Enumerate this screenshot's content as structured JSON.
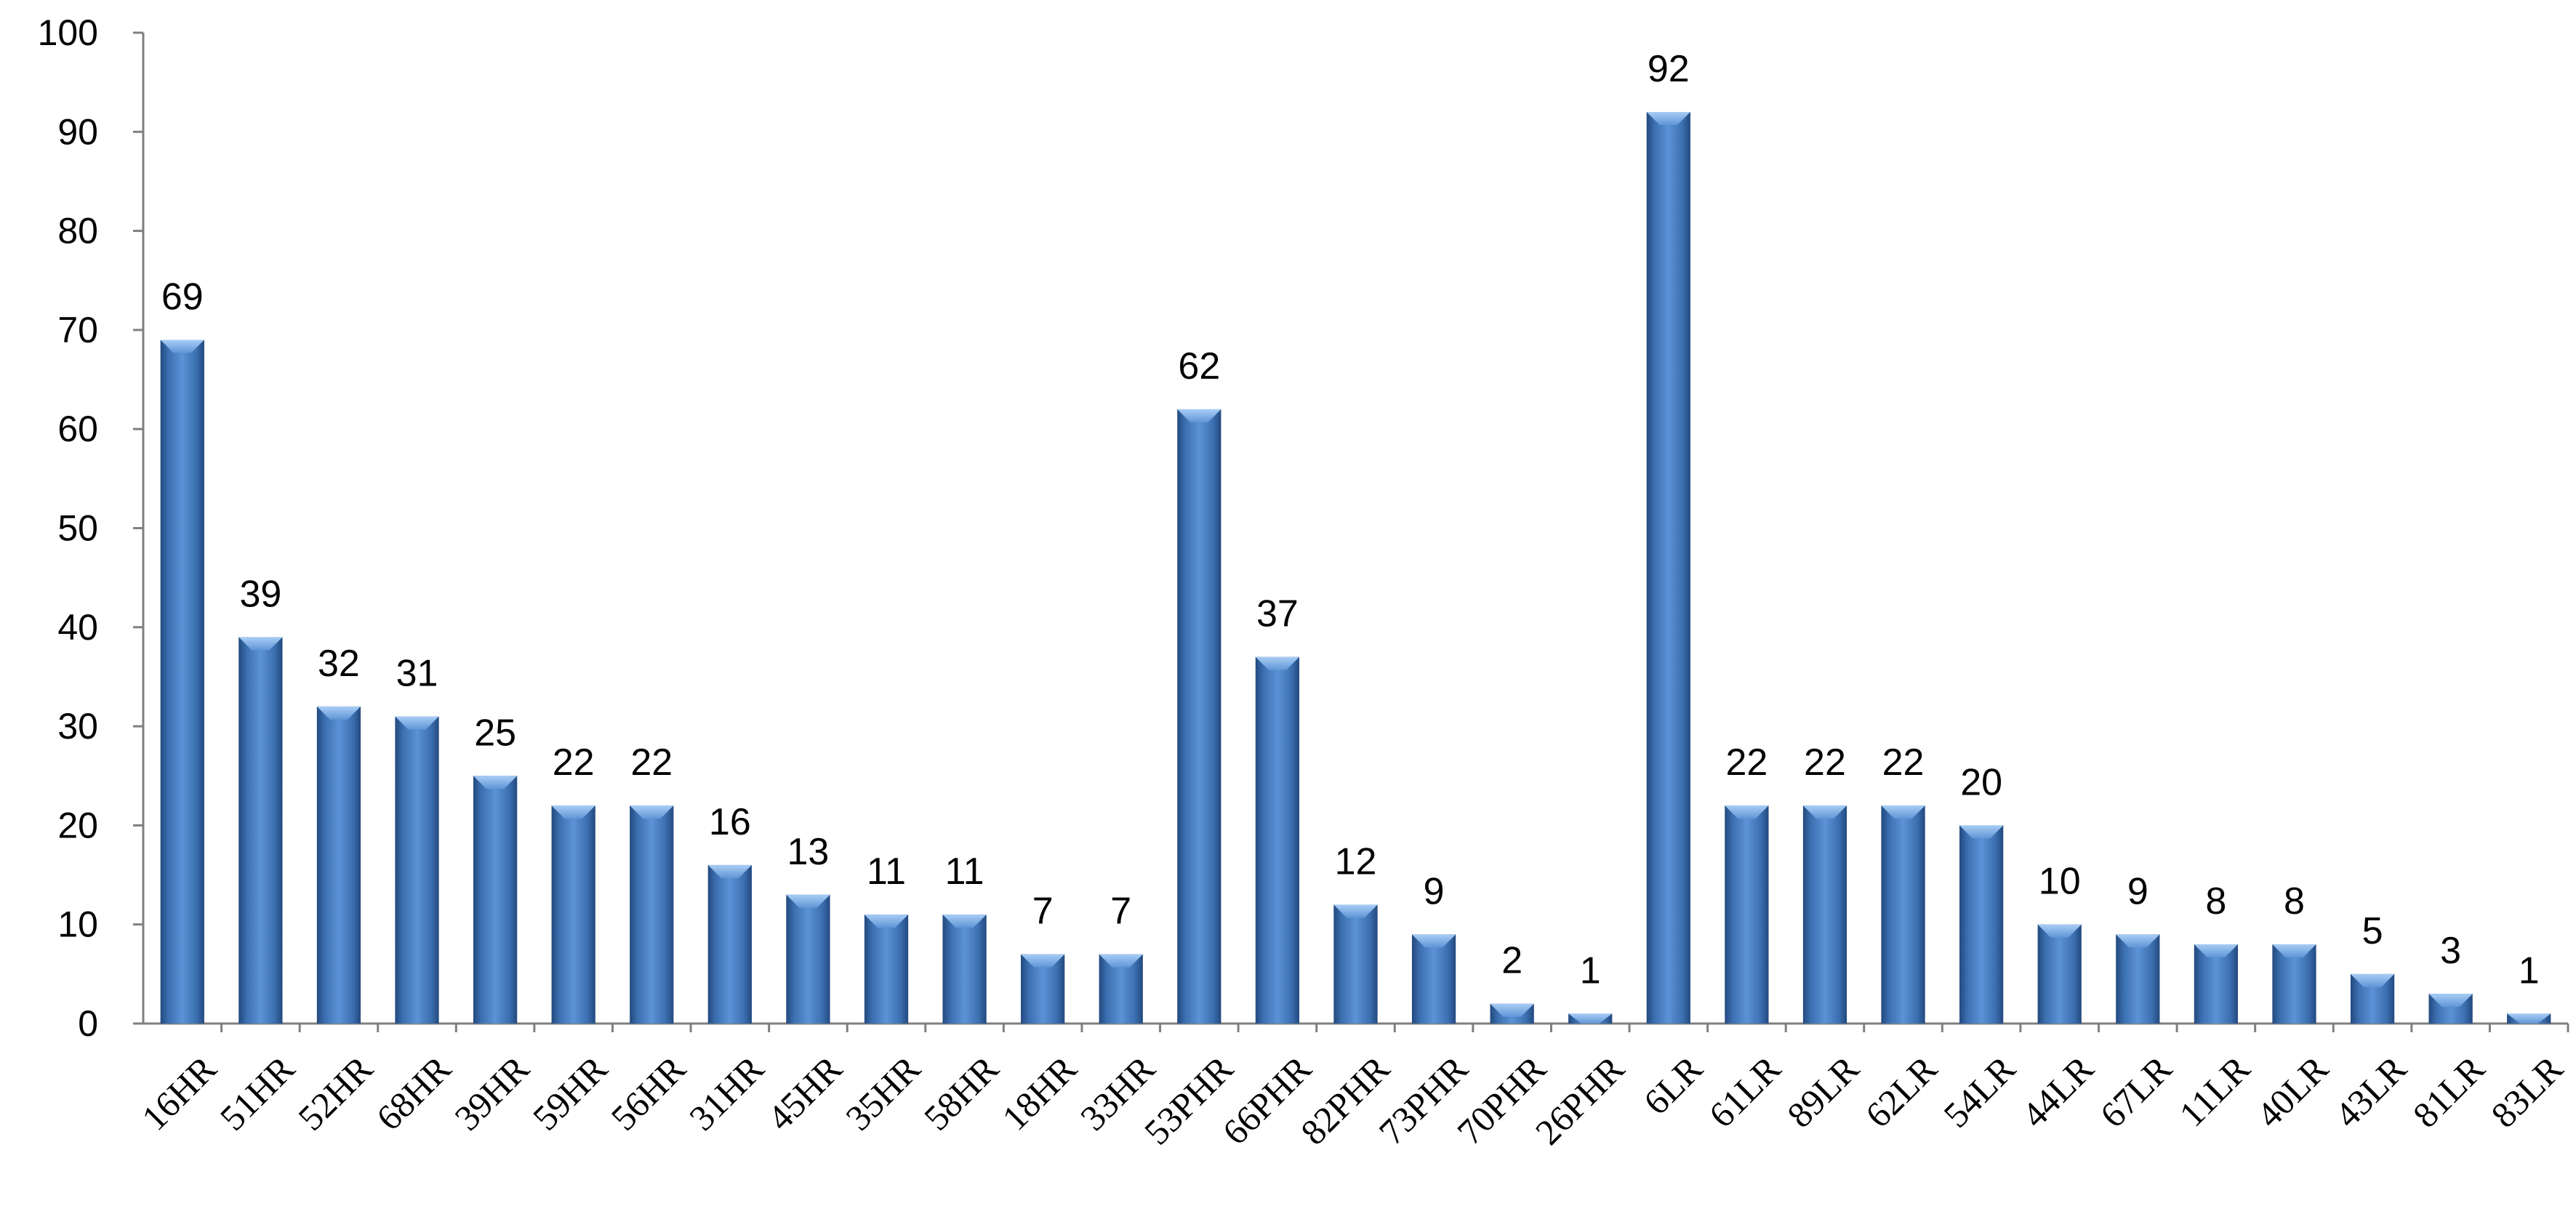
{
  "chart_data": {
    "type": "bar",
    "title": "",
    "xlabel": "",
    "ylabel": "",
    "ylim": [
      0,
      100
    ],
    "yticks": [
      0,
      10,
      20,
      30,
      40,
      50,
      60,
      70,
      80,
      90,
      100
    ],
    "grid": false,
    "legend": "none",
    "bar_color": "#3f74b8",
    "categories": [
      "16HR",
      "51HR",
      "52HR",
      "68HR",
      "39HR",
      "59HR",
      "56HR",
      "31HR",
      "45HR",
      "35HR",
      "58HR",
      "18HR",
      "33HR",
      "53PHR",
      "66PHR",
      "82PHR",
      "73PHR",
      "70PHR",
      "26PHR",
      "6LR",
      "61LR",
      "89LR",
      "62LR",
      "54LR",
      "44LR",
      "67LR",
      "11LR",
      "40LR",
      "43LR",
      "81LR",
      "83LR"
    ],
    "values": [
      69,
      39,
      32,
      31,
      25,
      22,
      22,
      16,
      13,
      11,
      11,
      7,
      7,
      62,
      37,
      12,
      9,
      2,
      1,
      92,
      22,
      22,
      22,
      20,
      10,
      9,
      8,
      8,
      5,
      3,
      1
    ]
  }
}
